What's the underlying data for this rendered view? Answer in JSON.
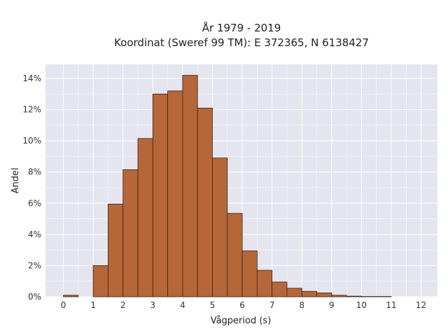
{
  "chart_data": {
    "type": "bar",
    "title_line1": "År 1979 - 2019",
    "title_line2": "Koordinat (Sweref 99 TM): E 372365, N 6138427",
    "xlabel": "Vågperiod (s)",
    "ylabel": "Andel",
    "bin_width": 0.5,
    "bins": [
      {
        "x0": 0.0,
        "value": 0.1
      },
      {
        "x0": 1.0,
        "value": 2.0
      },
      {
        "x0": 1.5,
        "value": 5.95
      },
      {
        "x0": 2.0,
        "value": 8.15
      },
      {
        "x0": 2.5,
        "value": 10.15
      },
      {
        "x0": 3.0,
        "value": 13.0
      },
      {
        "x0": 3.5,
        "value": 13.2
      },
      {
        "x0": 4.0,
        "value": 14.2
      },
      {
        "x0": 4.5,
        "value": 12.1
      },
      {
        "x0": 5.0,
        "value": 8.9
      },
      {
        "x0": 5.5,
        "value": 5.35
      },
      {
        "x0": 6.0,
        "value": 2.95
      },
      {
        "x0": 6.5,
        "value": 1.7
      },
      {
        "x0": 7.0,
        "value": 0.95
      },
      {
        "x0": 7.5,
        "value": 0.55
      },
      {
        "x0": 8.0,
        "value": 0.35
      },
      {
        "x0": 8.5,
        "value": 0.25
      },
      {
        "x0": 9.0,
        "value": 0.1
      },
      {
        "x0": 9.5,
        "value": 0.04
      },
      {
        "x0": 10.0,
        "value": 0.02
      },
      {
        "x0": 10.5,
        "value": 0.02
      }
    ],
    "x_ticks": [
      {
        "value": 0,
        "label": "0"
      },
      {
        "value": 1,
        "label": "1"
      },
      {
        "value": 2,
        "label": "2"
      },
      {
        "value": 3,
        "label": "3"
      },
      {
        "value": 4,
        "label": "4"
      },
      {
        "value": 5,
        "label": "5"
      },
      {
        "value": 6,
        "label": "6"
      },
      {
        "value": 7,
        "label": "7"
      },
      {
        "value": 8,
        "label": "8"
      },
      {
        "value": 9,
        "label": "9"
      },
      {
        "value": 10,
        "label": "10"
      },
      {
        "value": 11,
        "label": "11"
      },
      {
        "value": 12,
        "label": "12"
      }
    ],
    "y_ticks": [
      {
        "value": 0,
        "label": "0%"
      },
      {
        "value": 2,
        "label": "2%"
      },
      {
        "value": 4,
        "label": "4%"
      },
      {
        "value": 6,
        "label": "6%"
      },
      {
        "value": 8,
        "label": "8%"
      },
      {
        "value": 10,
        "label": "10%"
      },
      {
        "value": 12,
        "label": "12%"
      },
      {
        "value": 14,
        "label": "14%"
      }
    ],
    "xlim": [
      -0.6,
      12.55
    ],
    "ylim": [
      0,
      14.9
    ],
    "grid": true,
    "colors": {
      "bar_fill": "#b5673a",
      "bar_edge": "#3a2418",
      "plot_background": "#e5e5ef",
      "grid": "#ffffff"
    }
  }
}
